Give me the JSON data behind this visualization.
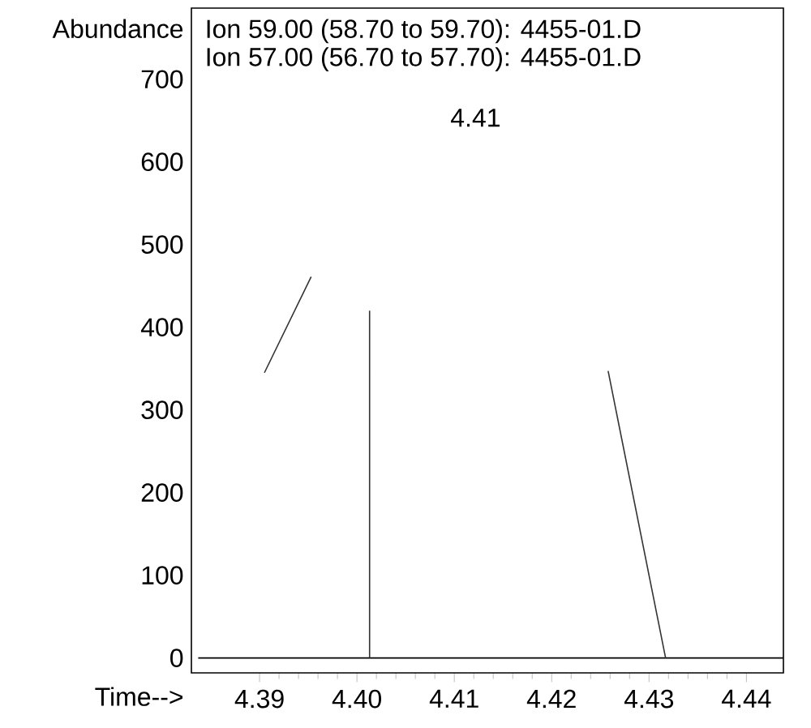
{
  "chart_data": {
    "type": "line",
    "title": "Ion  59.00 (58.70 to 59.70): 4455-01.D",
    "subtitle": "Ion  57.00 (56.70 to 57.70): 4455-01.D",
    "xlabel": "Time-->",
    "ylabel": "Abundance",
    "annotations": [
      "4.41"
    ],
    "xlim": [
      4.383,
      4.4438
    ],
    "ylim": [
      -18,
      786
    ],
    "xticks": [
      4.39,
      {
        "value": 4.4,
        "label": "4.40"
      },
      4.41,
      4.42,
      4.43,
      4.44
    ],
    "yticks": [
      0,
      100,
      200,
      300,
      400,
      500,
      600,
      700
    ],
    "series": [
      {
        "color": "#000000",
        "x": [
          4.3837,
          4.4438
        ],
        "values": [
          0,
          0
        ]
      },
      {
        "color": "#333333",
        "x": [
          4.3905,
          4.3953,
          4.398,
          4.4013,
          4.4013,
          4.42,
          4.4258,
          4.4317
        ],
        "values": [
          345,
          461,
          null,
          420,
          0,
          null,
          347,
          0
        ]
      }
    ]
  }
}
